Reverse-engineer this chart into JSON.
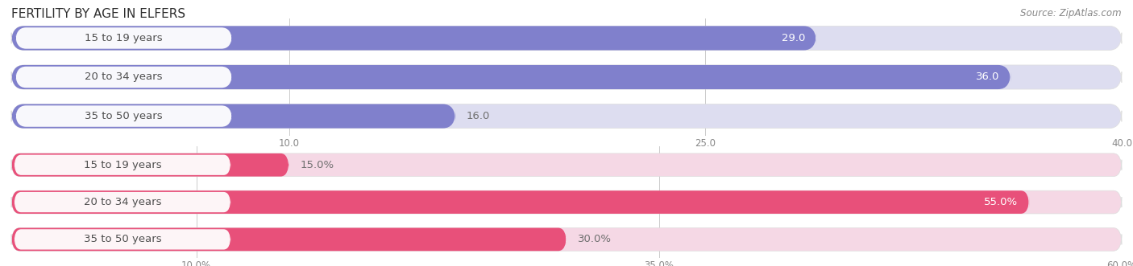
{
  "title": "FERTILITY BY AGE IN ELFERS",
  "source": "Source: ZipAtlas.com",
  "top_chart": {
    "categories": [
      "15 to 19 years",
      "20 to 34 years",
      "35 to 50 years"
    ],
    "values": [
      29.0,
      36.0,
      16.0
    ],
    "xlim": [
      0,
      40.0
    ],
    "xticks": [
      10.0,
      25.0,
      40.0
    ],
    "xtick_labels": [
      "10.0",
      "25.0",
      "40.0"
    ],
    "bar_color": "#8080cc",
    "bg_color": "#ddddf0"
  },
  "bottom_chart": {
    "categories": [
      "15 to 19 years",
      "20 to 34 years",
      "35 to 50 years"
    ],
    "values": [
      15.0,
      55.0,
      30.0
    ],
    "xlim": [
      0,
      60.0
    ],
    "xticks": [
      10.0,
      35.0,
      60.0
    ],
    "xtick_labels": [
      "10.0%",
      "35.0%",
      "60.0%"
    ],
    "bar_color": "#e8507a",
    "bg_color": "#f5d8e5"
  },
  "label_bg": "#ffffff",
  "label_color": "#505050",
  "value_color_inside": "#ffffff",
  "value_color_outside": "#707070",
  "bar_height": 0.62,
  "fig_bg": "#ffffff",
  "title_fontsize": 11,
  "source_fontsize": 8.5,
  "tick_fontsize": 8.5,
  "label_fontsize": 9.5
}
